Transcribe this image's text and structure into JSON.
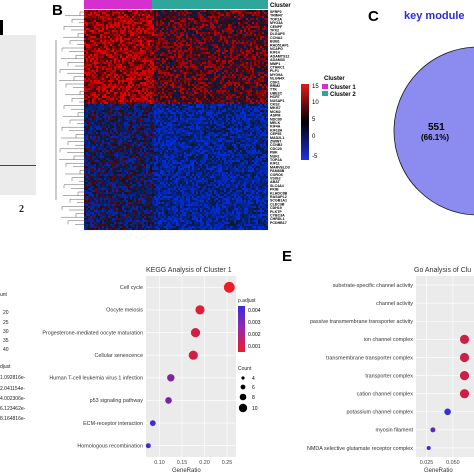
{
  "panel_a": {
    "letter_partial": "a",
    "tick": "2"
  },
  "panel_b": {
    "letter": "B",
    "cluster_header": "Cluster",
    "genes": [
      "SFRP2",
      "TRIM47",
      "TOP2A",
      "MYO3A",
      "CENPF",
      "TPX2",
      "DLGAP5",
      "CCNA2",
      "BUB1",
      "RAD51AP1",
      "NCAPG",
      "KIF14",
      "ADAMTS12",
      "ADAM33",
      "MMP1",
      "CTHRC1",
      "PLP1",
      "MYO9A",
      "NLGN4X",
      "CDK1",
      "RRM2",
      "TTK",
      "UBE2C",
      "HCRT",
      "NUSAP1",
      "CKS2",
      "MKI67",
      "MCM2",
      "ASPM",
      "NDC80",
      "MELK",
      "KIF4A",
      "KIF18A",
      "CEP55",
      "MAD2L1",
      "ZWINT",
      "CCNB2",
      "CDC20",
      "PBK",
      "NUF2",
      "TOP2A",
      "KIF11",
      "MARVELD3",
      "FAM83B",
      "CORO6",
      "VSIG2",
      "ABAT",
      "SLC4A4",
      "PKIB",
      "KLHDC8B",
      "RASAPL2",
      "SCGB1A1",
      "CLEC3B",
      "CDH19",
      "PLKTP",
      "CYBC3A",
      "CHRDL1",
      "PCDHB17"
    ],
    "legend_scale": {
      "ticks": [
        "15",
        "10",
        "5",
        "0",
        "-5"
      ]
    },
    "legend_cluster": {
      "title": "Cluster",
      "items": [
        "Cluster 1",
        "Cluster 2"
      ],
      "colors": [
        "#d62fd0",
        "#2ea69a"
      ]
    }
  },
  "panel_c": {
    "letter": "C",
    "title": "key module",
    "value": "551",
    "percent": "(66.1%)"
  },
  "panel_d": {
    "legend_partial": {
      "title_count": "unt",
      "counts": [
        "20",
        "25",
        "30",
        "35",
        "40"
      ],
      "title_padj": "djust",
      "padj": [
        "1.092816e-",
        "2.041154e-",
        "4.002306e-",
        "6.123462e-",
        "8.164816e-"
      ]
    }
  },
  "chart_data": [
    {
      "type": "scatter",
      "title": "KEGG Analysis of Cluster 1",
      "xlabel": "GeneRatio",
      "ylabel": "",
      "xticks": [
        "0.10",
        "0.15",
        "0.20",
        "0.25"
      ],
      "xlim": [
        0.07,
        0.27
      ],
      "categories": [
        "Cell cycle",
        "Oocyte meiosis",
        "Progesterone-mediated oocyte maturation",
        "Cellular senescence",
        "Human T-cell leukemia virus 1 infection",
        "p53 signaling pathway",
        "ECM-receptor interaction",
        "Homologous recombination"
      ],
      "x": [
        0.255,
        0.19,
        0.18,
        0.175,
        0.125,
        0.12,
        0.085,
        0.075
      ],
      "count": [
        10,
        8,
        8,
        8,
        6,
        5,
        4,
        3
      ],
      "p_adjust": [
        0.0001,
        0.0005,
        0.0008,
        0.0009,
        0.0032,
        0.0035,
        0.0048,
        0.0049
      ],
      "color_legend": {
        "title": "p.adjust",
        "ticks": [
          "0.004",
          "0.003",
          "0.002",
          "0.001"
        ]
      },
      "size_legend": {
        "title": "Count",
        "ticks": [
          "4",
          "6",
          "8",
          "10"
        ]
      },
      "colors": {
        "low": "#ee1c25",
        "high": "#3b2bde"
      }
    },
    {
      "type": "scatter",
      "title": "Go Analysis of Clu",
      "xlabel": "GeneRatio",
      "ylabel": "",
      "xticks": [
        "0.025",
        "0.050"
      ],
      "xlim": [
        0.015,
        0.07
      ],
      "categories": [
        "substrate-specific channel activity",
        "channel activity",
        "passive transmembrane transporter activity",
        "ion channel complex",
        "transmembrane transporter complex",
        "transporter complex",
        "cation channel complex",
        "potassium channel complex",
        "myosin filament",
        "NMDA selective glutamate receptor complex"
      ],
      "x": [
        null,
        null,
        null,
        0.061,
        0.061,
        0.061,
        0.061,
        0.045,
        0.031,
        0.027
      ],
      "count": [
        null,
        null,
        null,
        8,
        8,
        8,
        8,
        5,
        3,
        2
      ],
      "p_adjust": [
        null,
        null,
        null,
        0.001,
        0.001,
        0.001,
        0.001,
        0.005,
        0.004,
        0.006
      ],
      "colors": {
        "low": "#ee1c25",
        "high": "#3b2bde"
      }
    }
  ],
  "panel_e": {
    "letter": "E"
  }
}
